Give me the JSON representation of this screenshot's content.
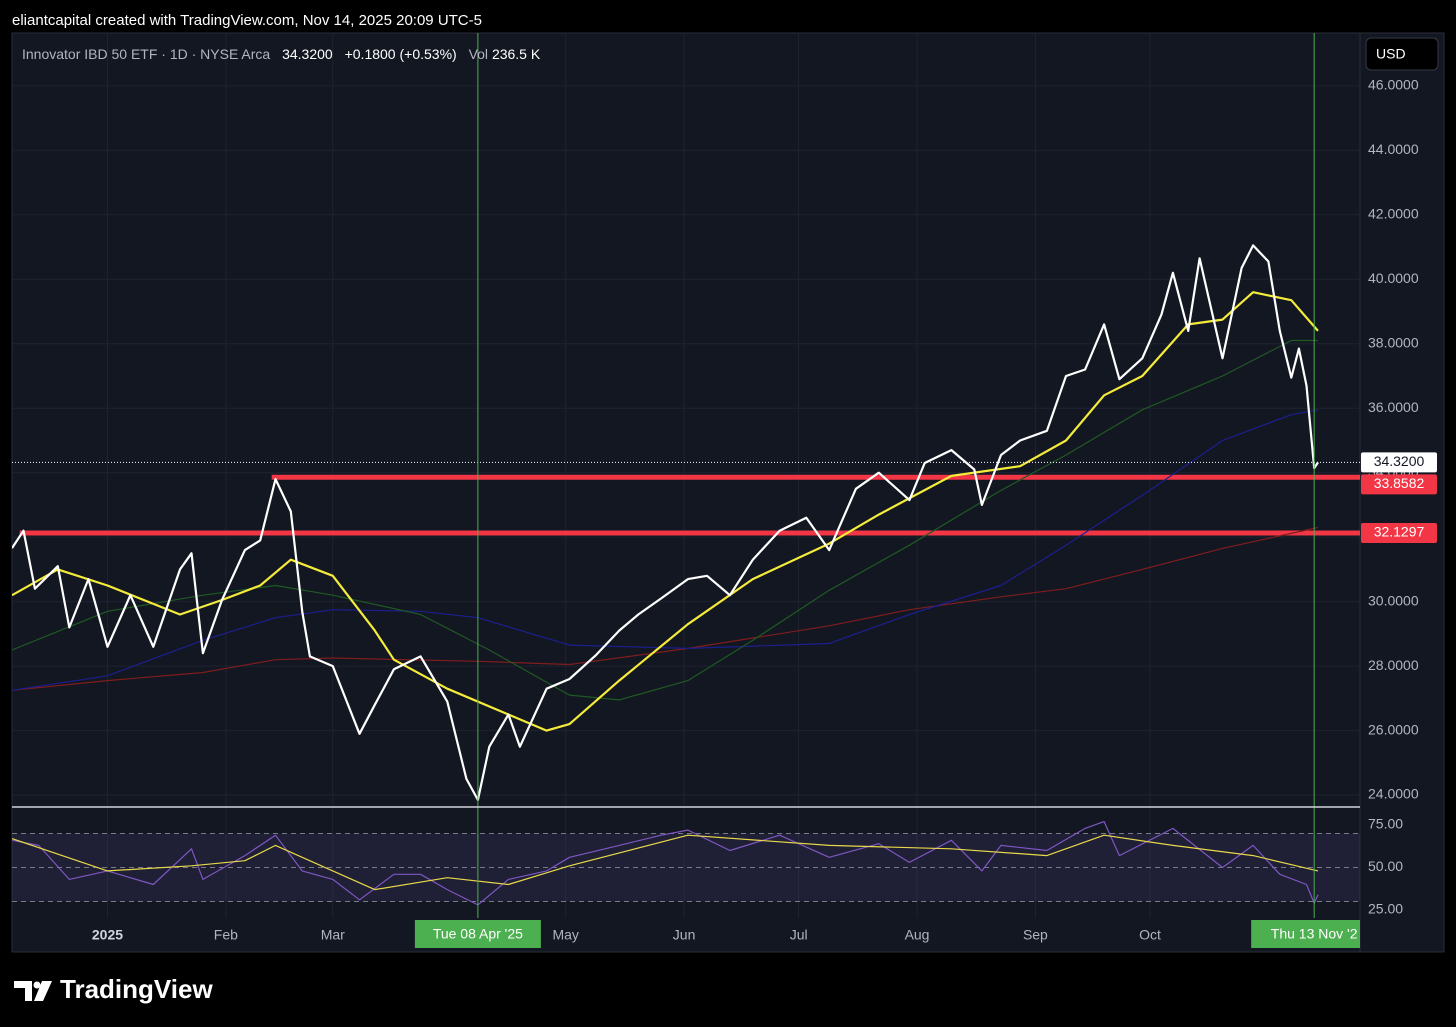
{
  "header": {
    "text": "eliantcapital created with TradingView.com, Nov 14, 2025 20:09 UTC-5"
  },
  "legend": {
    "symbol": "Innovator IBD 50 ETF · 1D · NYSE Arca",
    "price": "34.3200",
    "change": "+0.1800 (+0.53%)",
    "vol_label": "Vol",
    "vol": "236.5 K"
  },
  "currency": "USD",
  "logo": "TradingView",
  "crosshair": [
    {
      "x": "2025-04-08",
      "label": "Tue 08 Apr '25"
    },
    {
      "x": "2025-11-13",
      "label": "Thu 13 Nov '2"
    }
  ],
  "chart_data": [
    {
      "type": "line",
      "xlim": [
        "2024-12-07",
        "2025-11-25"
      ],
      "xticks": [
        {
          "value": "2025-01-01",
          "label": "2025"
        },
        {
          "value": "2025-02-01",
          "label": "Feb"
        },
        {
          "value": "2025-03-01",
          "label": "Mar"
        },
        {
          "value": "2025-05-01",
          "label": "May"
        },
        {
          "value": "2025-06-01",
          "label": "Jun"
        },
        {
          "value": "2025-07-01",
          "label": "Jul"
        },
        {
          "value": "2025-08-01",
          "label": "Aug"
        },
        {
          "value": "2025-09-01",
          "label": "Sep"
        },
        {
          "value": "2025-10-01",
          "label": "Oct"
        }
      ],
      "ylim": [
        23.66,
        47.64
      ],
      "yticks": [
        {
          "value": 24,
          "label": "24.0000"
        },
        {
          "value": 26,
          "label": "26.0000"
        },
        {
          "value": 28,
          "label": "28.0000"
        },
        {
          "value": 30,
          "label": "30.0000"
        },
        {
          "value": 32,
          "label": "32.0000"
        },
        {
          "value": 34,
          "label": "34.0000"
        },
        {
          "value": 36,
          "label": "36.0000"
        },
        {
          "value": 38,
          "label": "38.0000"
        },
        {
          "value": 40,
          "label": "40.0000"
        },
        {
          "value": 42,
          "label": "42.0000"
        },
        {
          "value": 44,
          "label": "44.0000"
        },
        {
          "value": 46,
          "label": "46.0000"
        }
      ],
      "grid": true,
      "price_line": {
        "value": 34.32,
        "label": "34.3200"
      },
      "levels": [
        {
          "value": 33.8582,
          "label": "33.8582",
          "from": "2025-02-13",
          "color": "#f23645"
        },
        {
          "value": 32.1297,
          "label": "32.1297",
          "from": "2024-12-09",
          "color": "#f23645"
        }
      ],
      "series": [
        {
          "color": "#7f1d1d",
          "width": 1.2,
          "x": [
            "2024-12-07",
            "2025-01-01",
            "2025-01-26",
            "2025-02-14",
            "2025-03-01",
            "2025-04-08",
            "2025-05-02",
            "2025-06-02",
            "2025-07-09",
            "2025-07-30",
            "2025-08-23",
            "2025-09-09",
            "2025-09-29",
            "2025-10-20",
            "2025-11-14"
          ],
          "values": [
            27.25,
            27.55,
            27.8,
            28.2,
            28.25,
            28.15,
            28.05,
            28.55,
            29.25,
            29.75,
            30.15,
            30.4,
            31.0,
            31.65,
            32.3
          ]
        },
        {
          "color": "#1c1f8f",
          "width": 1.2,
          "x": [
            "2024-12-07",
            "2025-01-01",
            "2025-01-26",
            "2025-02-14",
            "2025-03-01",
            "2025-03-24",
            "2025-04-08",
            "2025-05-02",
            "2025-06-02",
            "2025-07-09",
            "2025-07-30",
            "2025-08-23",
            "2025-09-09",
            "2025-09-29",
            "2025-10-20",
            "2025-11-07",
            "2025-11-14"
          ],
          "values": [
            27.25,
            27.7,
            28.8,
            29.5,
            29.75,
            29.7,
            29.5,
            28.65,
            28.55,
            28.7,
            29.6,
            30.5,
            31.75,
            33.3,
            35.0,
            35.8,
            35.95
          ]
        },
        {
          "color": "#1e5a22",
          "width": 1.2,
          "x": [
            "2024-12-07",
            "2025-01-01",
            "2025-01-26",
            "2025-02-14",
            "2025-03-01",
            "2025-03-24",
            "2025-04-11",
            "2025-05-02",
            "2025-05-15",
            "2025-06-02",
            "2025-06-19",
            "2025-07-09",
            "2025-07-30",
            "2025-08-23",
            "2025-09-09",
            "2025-09-29",
            "2025-10-20",
            "2025-11-07",
            "2025-11-14"
          ],
          "values": [
            28.5,
            29.7,
            30.2,
            30.5,
            30.2,
            29.6,
            28.5,
            27.1,
            26.95,
            27.55,
            28.8,
            30.35,
            31.75,
            33.45,
            34.55,
            35.95,
            37.0,
            38.1,
            38.1
          ]
        },
        {
          "color": "#f5eb3a",
          "width": 2.2,
          "x": [
            "2024-12-07",
            "2024-12-19",
            "2025-01-01",
            "2025-01-20",
            "2025-01-31",
            "2025-02-10",
            "2025-02-18",
            "2025-03-01",
            "2025-03-12",
            "2025-03-17",
            "2025-03-31",
            "2025-04-16",
            "2025-04-26",
            "2025-05-02",
            "2025-05-15",
            "2025-06-02",
            "2025-06-19",
            "2025-07-09",
            "2025-07-22",
            "2025-08-10",
            "2025-08-28",
            "2025-09-09",
            "2025-09-19",
            "2025-09-29",
            "2025-10-11",
            "2025-10-20",
            "2025-10-28",
            "2025-11-07",
            "2025-11-14"
          ],
          "values": [
            30.2,
            31.0,
            30.5,
            29.6,
            30.05,
            30.5,
            31.3,
            30.8,
            29.1,
            28.2,
            27.3,
            26.5,
            26.0,
            26.2,
            27.55,
            29.3,
            30.7,
            31.8,
            32.7,
            33.9,
            34.2,
            35.0,
            36.4,
            37.0,
            38.6,
            38.75,
            39.6,
            39.35,
            38.4
          ]
        },
        {
          "color": "#ffffff",
          "width": 2.2,
          "x": [
            "2024-12-07",
            "2024-12-10",
            "2024-12-13",
            "2024-12-19",
            "2024-12-22",
            "2024-12-27",
            "2025-01-01",
            "2025-01-07",
            "2025-01-13",
            "2025-01-20",
            "2025-01-23",
            "2025-01-26",
            "2025-01-31",
            "2025-02-06",
            "2025-02-10",
            "2025-02-14",
            "2025-02-18",
            "2025-02-21",
            "2025-02-23",
            "2025-03-01",
            "2025-03-08",
            "2025-03-12",
            "2025-03-17",
            "2025-03-24",
            "2025-03-31",
            "2025-04-05",
            "2025-04-08",
            "2025-04-11",
            "2025-04-16",
            "2025-04-19",
            "2025-04-26",
            "2025-05-02",
            "2025-05-09",
            "2025-05-15",
            "2025-05-20",
            "2025-05-26",
            "2025-06-02",
            "2025-06-07",
            "2025-06-13",
            "2025-06-19",
            "2025-06-26",
            "2025-07-03",
            "2025-07-09",
            "2025-07-16",
            "2025-07-22",
            "2025-07-30",
            "2025-08-03",
            "2025-08-10",
            "2025-08-16",
            "2025-08-18",
            "2025-08-23",
            "2025-08-28",
            "2025-09-04",
            "2025-09-09",
            "2025-09-14",
            "2025-09-19",
            "2025-09-23",
            "2025-09-29",
            "2025-10-04",
            "2025-10-07",
            "2025-10-11",
            "2025-10-14",
            "2025-10-20",
            "2025-10-25",
            "2025-10-28",
            "2025-11-01",
            "2025-11-04",
            "2025-11-07",
            "2025-11-09",
            "2025-11-11",
            "2025-11-13",
            "2025-11-14"
          ],
          "values": [
            31.66,
            32.2,
            30.4,
            31.1,
            29.2,
            30.7,
            28.6,
            30.2,
            28.6,
            31.0,
            31.5,
            28.4,
            30.05,
            31.6,
            31.9,
            33.8,
            32.8,
            29.7,
            28.3,
            28.0,
            25.9,
            26.8,
            27.9,
            28.3,
            26.9,
            24.5,
            23.85,
            25.5,
            26.5,
            25.5,
            27.3,
            27.6,
            28.35,
            29.1,
            29.6,
            30.1,
            30.7,
            30.8,
            30.2,
            31.3,
            32.2,
            32.6,
            31.6,
            33.5,
            34.0,
            33.15,
            34.3,
            34.7,
            34.1,
            33.0,
            34.55,
            35.0,
            35.3,
            37.0,
            37.2,
            38.6,
            36.9,
            37.55,
            38.9,
            40.2,
            38.4,
            40.65,
            37.55,
            40.35,
            41.05,
            40.55,
            38.4,
            36.95,
            37.85,
            36.7,
            34.14,
            34.32
          ]
        }
      ]
    },
    {
      "type": "line",
      "ylim": [
        20.3,
        85
      ],
      "yticks": [
        {
          "value": 75,
          "label": "75.00"
        },
        {
          "value": 50,
          "label": "50.00"
        },
        {
          "value": 25,
          "label": "25.00"
        }
      ],
      "hlines": [
        70,
        50,
        30
      ],
      "band_color": "#7e57c2",
      "series": [
        {
          "color": "#7e57c2",
          "width": 1.2,
          "x": [
            "2024-12-07",
            "2024-12-14",
            "2024-12-22",
            "2025-01-01",
            "2025-01-13",
            "2025-01-23",
            "2025-01-26",
            "2025-02-06",
            "2025-02-14",
            "2025-02-21",
            "2025-03-01",
            "2025-03-08",
            "2025-03-17",
            "2025-03-24",
            "2025-03-31",
            "2025-04-08",
            "2025-04-16",
            "2025-04-26",
            "2025-05-02",
            "2025-05-15",
            "2025-05-26",
            "2025-06-02",
            "2025-06-13",
            "2025-06-26",
            "2025-07-09",
            "2025-07-22",
            "2025-07-30",
            "2025-08-10",
            "2025-08-18",
            "2025-08-23",
            "2025-09-04",
            "2025-09-14",
            "2025-09-19",
            "2025-09-23",
            "2025-10-07",
            "2025-10-20",
            "2025-10-28",
            "2025-11-04",
            "2025-11-11",
            "2025-11-13",
            "2025-11-14"
          ],
          "values": [
            66,
            63,
            43,
            48,
            40,
            61,
            43,
            57,
            69,
            48,
            43,
            31,
            46,
            46,
            37,
            28,
            43,
            48,
            56,
            63,
            69,
            72,
            60,
            69,
            56,
            64,
            53,
            66,
            48,
            63,
            60,
            73,
            77,
            57,
            73,
            50,
            63,
            46,
            40,
            29,
            34
          ]
        },
        {
          "color": "#e8d84a",
          "width": 1.2,
          "x": [
            "2024-12-07",
            "2025-01-01",
            "2025-01-23",
            "2025-02-06",
            "2025-02-14",
            "2025-03-01",
            "2025-03-12",
            "2025-03-31",
            "2025-04-16",
            "2025-05-02",
            "2025-06-02",
            "2025-07-09",
            "2025-08-10",
            "2025-09-04",
            "2025-09-19",
            "2025-10-07",
            "2025-10-28",
            "2025-11-14"
          ],
          "values": [
            67,
            48,
            51,
            54,
            63,
            48,
            37,
            44,
            40,
            51,
            69,
            63,
            61,
            57,
            69,
            63,
            57,
            48
          ]
        }
      ]
    }
  ]
}
